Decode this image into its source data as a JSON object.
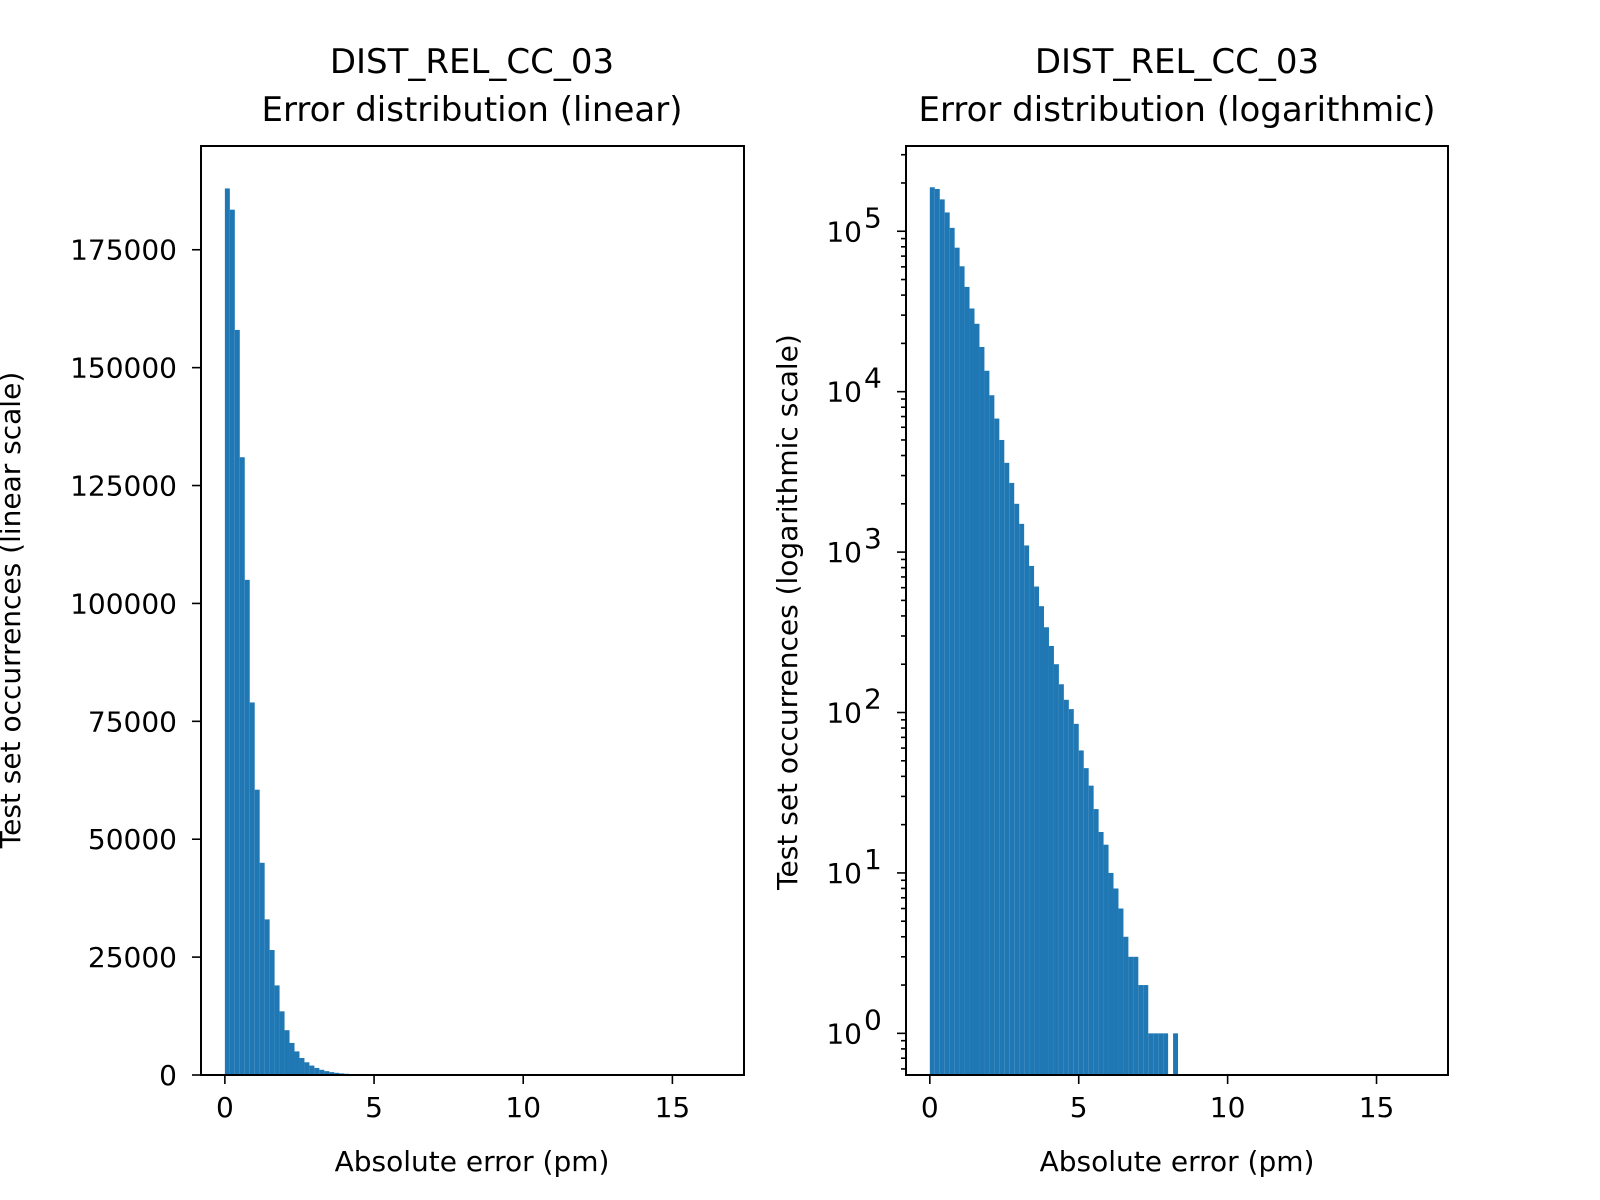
{
  "chart_data": [
    {
      "type": "bar",
      "title_line1": "DIST_REL_CC_03",
      "title_line2": "Error distribution (linear)",
      "xlabel": "Absolute error (pm)",
      "ylabel": "Test set occurrences (linear scale)",
      "yscale": "linear",
      "xlim": [
        -0.8,
        17.4
      ],
      "ylim": [
        0,
        197000
      ],
      "xticks": [
        0,
        5,
        10,
        15
      ],
      "xtick_labels": [
        "0",
        "5",
        "10",
        "15"
      ],
      "yticks": [
        0,
        25000,
        50000,
        75000,
        100000,
        125000,
        150000,
        175000
      ],
      "ytick_labels": [
        "0",
        "25000",
        "50000",
        "75000",
        "100000",
        "125000",
        "150000",
        "175000"
      ],
      "bin_width": 0.1667,
      "bin_start": 0,
      "values": [
        188000,
        183500,
        158000,
        131000,
        105000,
        79000,
        60500,
        45000,
        33000,
        26500,
        19000,
        13500,
        9500,
        6800,
        5000,
        3600,
        2700,
        2000,
        1500,
        1100,
        820,
        610,
        460,
        340,
        260,
        200,
        150
      ],
      "color": "#1f77b4"
    },
    {
      "type": "bar",
      "title_line1": "DIST_REL_CC_03",
      "title_line2": "Error distribution (logarithmic)",
      "xlabel": "Absolute error (pm)",
      "ylabel": "Test set occurrences (logarithmic scale)",
      "yscale": "log",
      "xlim": [
        -0.8,
        17.4
      ],
      "ylim": [
        0.55,
        340000
      ],
      "xticks": [
        0,
        5,
        10,
        15
      ],
      "xtick_labels": [
        "0",
        "5",
        "10",
        "15"
      ],
      "yticks": [
        1,
        10,
        100,
        1000,
        10000,
        100000
      ],
      "ytick_labels": [
        {
          "base": "10",
          "exp": "0"
        },
        {
          "base": "10",
          "exp": "1"
        },
        {
          "base": "10",
          "exp": "2"
        },
        {
          "base": "10",
          "exp": "3"
        },
        {
          "base": "10",
          "exp": "4"
        },
        {
          "base": "10",
          "exp": "5"
        }
      ],
      "bin_width": 0.1667,
      "bin_start": 0,
      "values": [
        188000,
        183500,
        158000,
        131000,
        105000,
        79000,
        60500,
        45000,
        33000,
        26500,
        19000,
        13500,
        9500,
        6800,
        5000,
        3600,
        2700,
        2000,
        1500,
        1100,
        820,
        610,
        460,
        340,
        260,
        200,
        150,
        120,
        105,
        85,
        58,
        45,
        35,
        25,
        18,
        15,
        10,
        8,
        6,
        4,
        3,
        3,
        2,
        2,
        1,
        1,
        1,
        1,
        0,
        1
      ],
      "values_compressed_note": "",
      "color": "#1f77b4"
    }
  ]
}
